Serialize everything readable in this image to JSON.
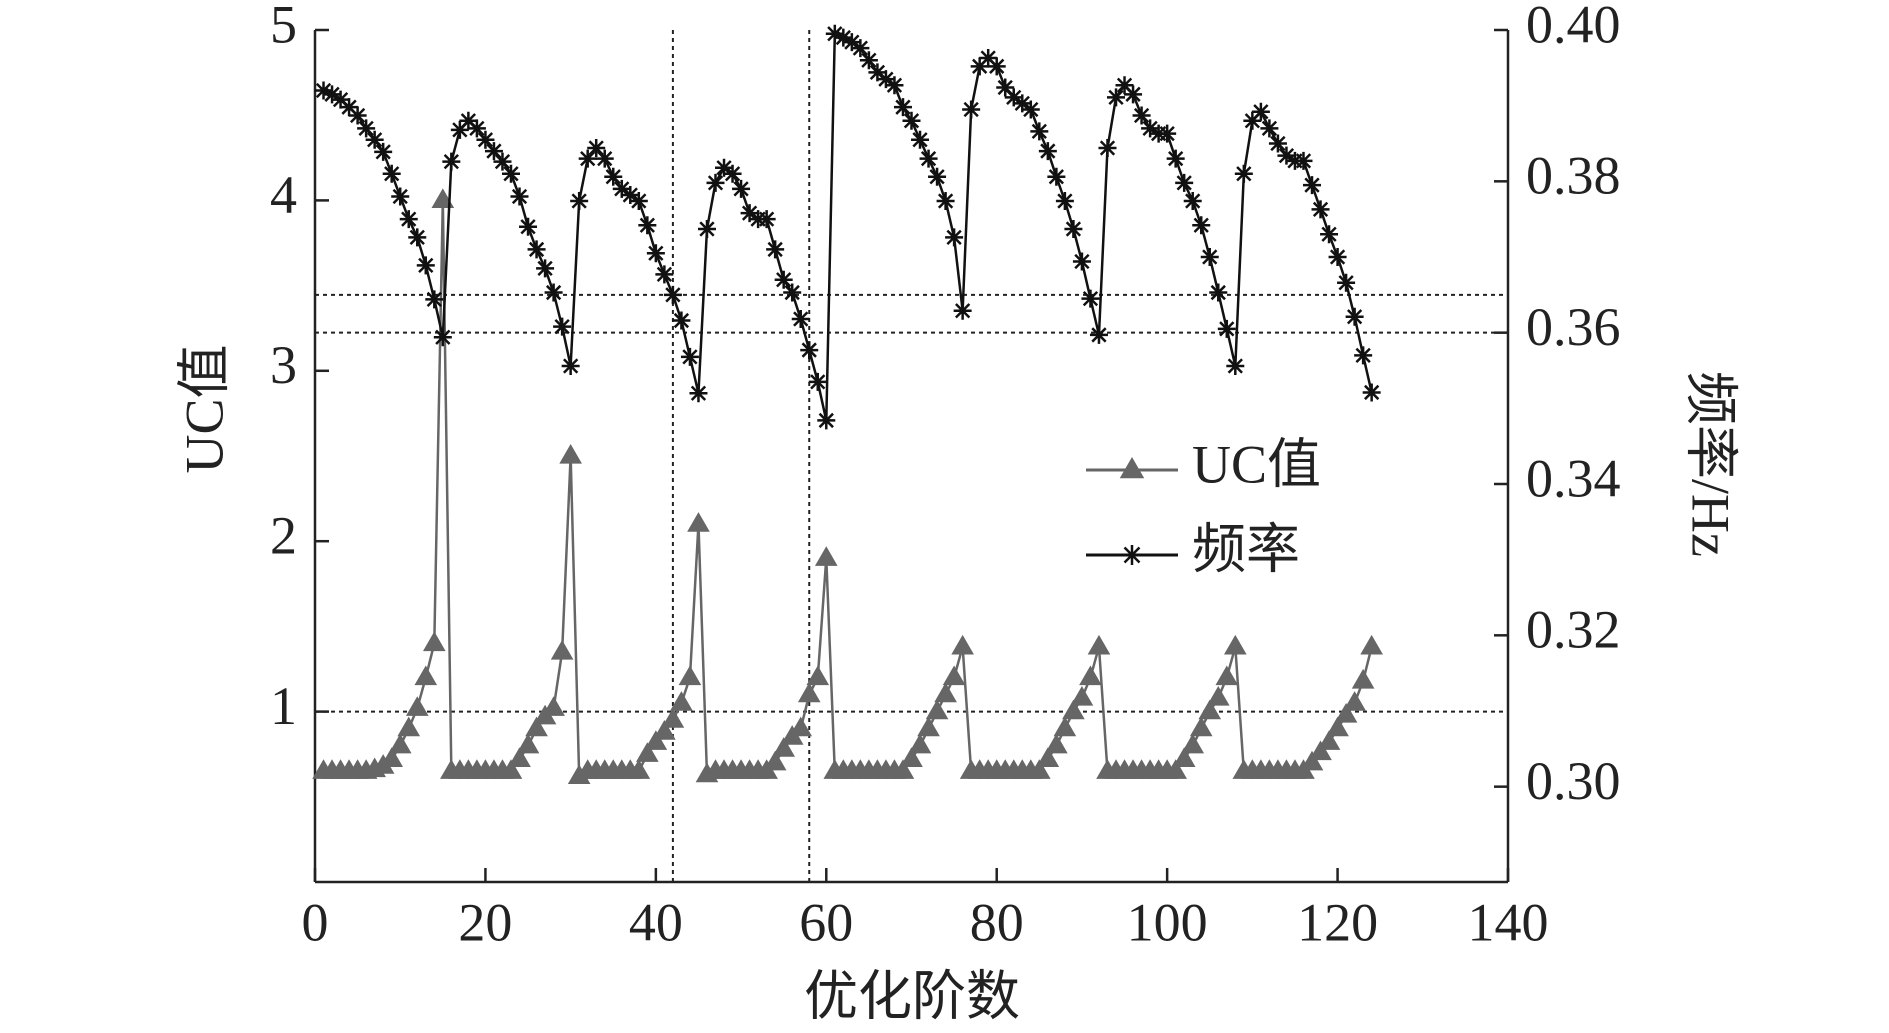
{
  "chart_data": {
    "type": "line",
    "xlabel": "优化阶数",
    "ylabel": "UC值",
    "y2label": "频率/Hz",
    "xlim": [
      0,
      140
    ],
    "xticks": [
      0,
      20,
      40,
      60,
      80,
      100,
      120,
      140
    ],
    "ylim": [
      0,
      5
    ],
    "yticks": [
      1,
      2,
      3,
      4,
      5
    ],
    "y2lim": [
      0.2874,
      0.4
    ],
    "y2ticks": [
      {
        "value": 0.3,
        "label": "0.30"
      },
      0.32,
      0.34,
      0.36,
      0.38,
      {
        "value": 0.4,
        "label": "0.40"
      }
    ],
    "legend_position": "center",
    "reference_lines": {
      "x": [
        42,
        58
      ],
      "y": [
        1
      ],
      "y2": [
        0.365,
        0.36
      ]
    },
    "x": [
      1,
      2,
      3,
      4,
      5,
      6,
      7,
      8,
      9,
      10,
      11,
      12,
      13,
      14,
      15,
      16,
      17,
      18,
      19,
      20,
      21,
      22,
      23,
      24,
      25,
      26,
      27,
      28,
      29,
      30,
      31,
      32,
      33,
      34,
      35,
      36,
      37,
      38,
      39,
      40,
      41,
      42,
      43,
      44,
      45,
      46,
      47,
      48,
      49,
      50,
      51,
      52,
      53,
      54,
      55,
      56,
      57,
      58,
      59,
      60,
      61,
      62,
      63,
      64,
      65,
      66,
      67,
      68,
      69,
      70,
      71,
      72,
      73,
      74,
      75,
      76,
      77,
      78,
      79,
      80,
      81,
      82,
      83,
      84,
      85,
      86,
      87,
      88,
      89,
      90,
      91,
      92,
      93,
      94,
      95,
      96,
      97,
      98,
      99,
      100,
      101,
      102,
      103,
      104,
      105,
      106,
      107,
      108,
      109,
      110,
      111,
      112,
      113,
      114,
      115,
      116,
      117,
      118,
      119,
      120,
      121,
      122,
      123,
      124
    ],
    "series": [
      {
        "name": "UC值",
        "color": "#666666",
        "marker": "triangle",
        "axis": "y",
        "values": [
          0.65,
          0.65,
          0.65,
          0.65,
          0.65,
          0.65,
          0.66,
          0.68,
          0.72,
          0.8,
          0.9,
          1.02,
          1.2,
          1.4,
          4.0,
          0.65,
          0.65,
          0.65,
          0.65,
          0.65,
          0.65,
          0.65,
          0.65,
          0.72,
          0.8,
          0.9,
          0.97,
          1.02,
          1.35,
          2.5,
          0.62,
          0.65,
          0.65,
          0.65,
          0.65,
          0.65,
          0.65,
          0.65,
          0.75,
          0.82,
          0.88,
          0.95,
          1.05,
          1.2,
          2.1,
          0.63,
          0.65,
          0.65,
          0.65,
          0.65,
          0.65,
          0.65,
          0.65,
          0.7,
          0.78,
          0.85,
          0.9,
          1.1,
          1.2,
          1.9,
          0.65,
          0.65,
          0.65,
          0.65,
          0.65,
          0.65,
          0.65,
          0.65,
          0.65,
          0.72,
          0.8,
          0.9,
          1.0,
          1.1,
          1.2,
          1.38,
          0.65,
          0.65,
          0.65,
          0.65,
          0.65,
          0.65,
          0.65,
          0.65,
          0.65,
          0.72,
          0.8,
          0.9,
          1.0,
          1.08,
          1.2,
          1.38,
          0.65,
          0.65,
          0.65,
          0.65,
          0.65,
          0.65,
          0.65,
          0.65,
          0.65,
          0.72,
          0.8,
          0.9,
          1.0,
          1.08,
          1.2,
          1.38,
          0.65,
          0.65,
          0.65,
          0.65,
          0.65,
          0.65,
          0.65,
          0.65,
          0.7,
          0.76,
          0.82,
          0.9,
          0.98,
          1.05,
          1.18,
          1.38
        ]
      },
      {
        "name": "频率",
        "color": "#111111",
        "marker": "asterisk",
        "axis": "y2",
        "values": [
          0.392,
          0.3915,
          0.3908,
          0.3898,
          0.3887,
          0.387,
          0.3855,
          0.3839,
          0.381,
          0.378,
          0.375,
          0.3726,
          0.3689,
          0.3644,
          0.3594,
          0.3826,
          0.3868,
          0.388,
          0.387,
          0.3855,
          0.384,
          0.3826,
          0.381,
          0.378,
          0.374,
          0.371,
          0.3685,
          0.3653,
          0.3608,
          0.3556,
          0.3774,
          0.383,
          0.3844,
          0.383,
          0.3806,
          0.379,
          0.3782,
          0.3774,
          0.3742,
          0.3705,
          0.3677,
          0.365,
          0.3616,
          0.3568,
          0.352,
          0.3737,
          0.3798,
          0.3818,
          0.381,
          0.379,
          0.3758,
          0.375,
          0.375,
          0.371,
          0.367,
          0.3653,
          0.3618,
          0.3577,
          0.3535,
          0.3484,
          0.3995,
          0.399,
          0.3984,
          0.3976,
          0.396,
          0.3944,
          0.3935,
          0.3927,
          0.3898,
          0.388,
          0.3855,
          0.383,
          0.3806,
          0.3774,
          0.3726,
          0.3629,
          0.3895,
          0.3952,
          0.3963,
          0.3952,
          0.3924,
          0.3911,
          0.3903,
          0.3895,
          0.3866,
          0.384,
          0.3806,
          0.3774,
          0.3737,
          0.3694,
          0.3645,
          0.3597,
          0.3844,
          0.3911,
          0.3927,
          0.3915,
          0.3887,
          0.387,
          0.3863,
          0.3863,
          0.383,
          0.3798,
          0.3774,
          0.3742,
          0.37,
          0.3653,
          0.3605,
          0.3556,
          0.381,
          0.388,
          0.3892,
          0.387,
          0.385,
          0.3834,
          0.3827,
          0.3827,
          0.3795,
          0.3763,
          0.373,
          0.37,
          0.3666,
          0.3621,
          0.357,
          0.3521
        ]
      }
    ]
  }
}
